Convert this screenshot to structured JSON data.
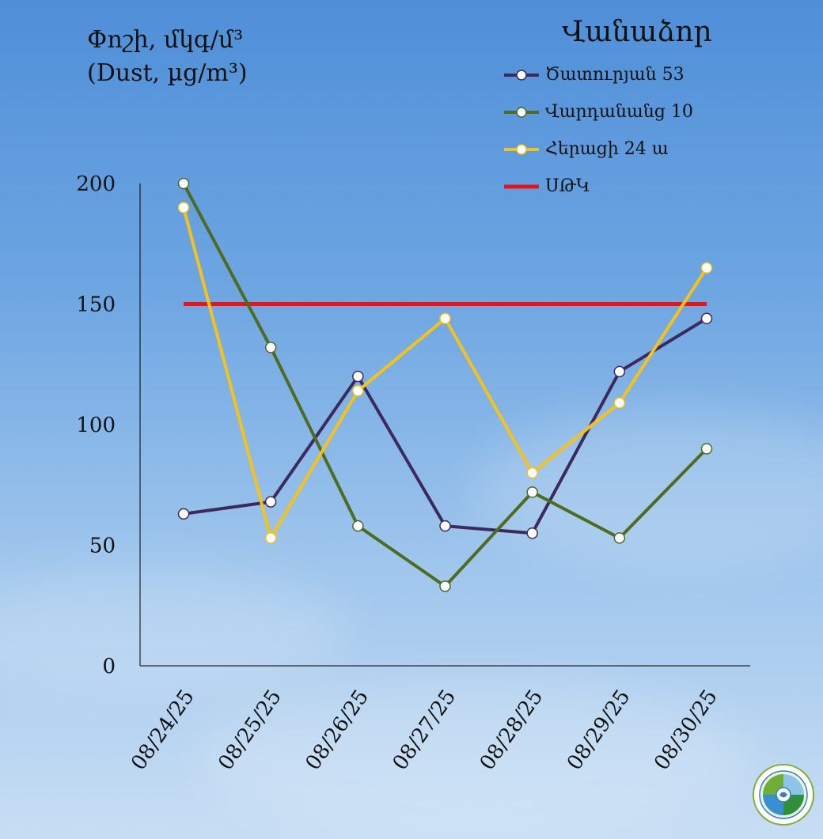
{
  "chart_data": {
    "type": "line",
    "title": "",
    "ylabel_line1": "Փոշի, մկգ/մ³",
    "ylabel_line2": "(Dust, µg/m³)",
    "ylim": [
      0,
      200
    ],
    "yticks": [
      "0",
      "50",
      "100",
      "150",
      "200"
    ],
    "yticks_values": [
      0,
      50,
      100,
      150,
      200
    ],
    "categories": [
      "08/24/25",
      "08/25/25",
      "08/26/25",
      "08/27/25",
      "08/28/25",
      "08/29/25",
      "08/30/25"
    ],
    "legend_title": "Վանաձոր",
    "legend_placement": "top-right",
    "grid": false,
    "series": [
      {
        "name": "Ծատուրյան 53",
        "color": "#3d2a5c",
        "values": [
          63,
          68,
          120,
          58,
          55,
          122,
          144
        ]
      },
      {
        "name": "Վարդանանց 10",
        "color": "#4f6b1f",
        "values": [
          200,
          132,
          58,
          33,
          72,
          53,
          90
        ]
      },
      {
        "name": "Հերացի 24 ա",
        "color": "#f5c21a",
        "values": [
          190,
          53,
          114,
          144,
          80,
          109,
          165
        ]
      }
    ],
    "threshold": {
      "name": "ՍԹԿ",
      "color": "#e8141a",
      "value": 150
    }
  }
}
